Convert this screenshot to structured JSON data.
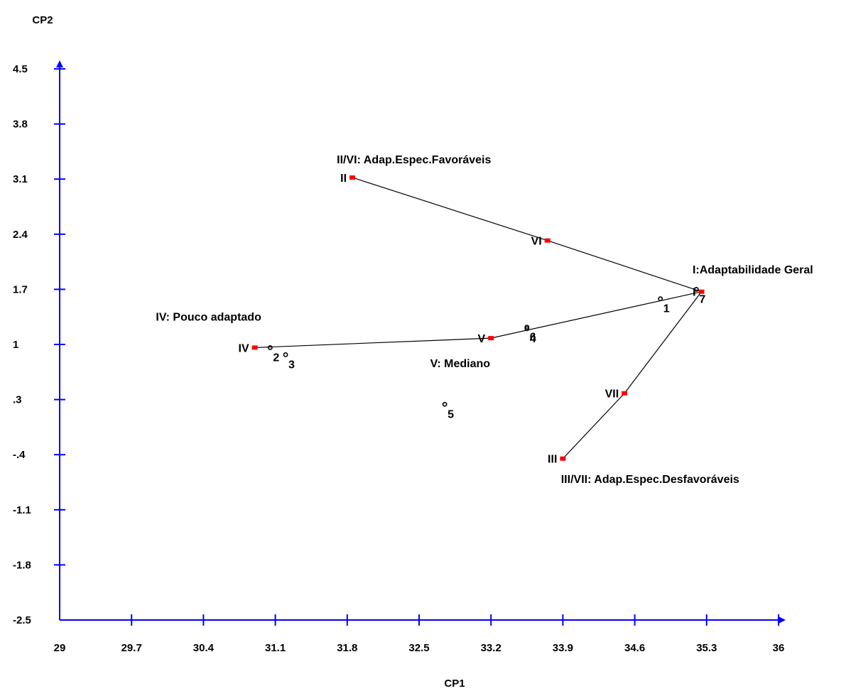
{
  "chart_data": {
    "type": "scatter",
    "title": "",
    "xlabel": "CP1",
    "ylabel": "CP2",
    "xlim": [
      29,
      36
    ],
    "ylim": [
      -2.5,
      4.5
    ],
    "x_ticks": [
      "29",
      "29.7",
      "30.4",
      "31.1",
      "31.8",
      "32.5",
      "33.2",
      "33.9",
      "34.6",
      "35.3",
      "36"
    ],
    "y_ticks": [
      "4.5",
      "3.8",
      "3.1",
      "2.4",
      "1.7",
      "1",
      ".3",
      "-.4",
      "-1.1",
      "-1.8",
      "-2.5"
    ],
    "grid": false,
    "colors": {
      "axis": "#0000ff",
      "reference": "#ff0000",
      "genotype": "#000000",
      "line": "#000000"
    },
    "reference_points": [
      {
        "label": "I",
        "x": 35.25,
        "y": 1.67
      },
      {
        "label": "II",
        "x": 31.85,
        "y": 3.12
      },
      {
        "label": "III",
        "x": 33.9,
        "y": -0.45
      },
      {
        "label": "IV",
        "x": 30.9,
        "y": 0.96
      },
      {
        "label": "V",
        "x": 33.2,
        "y": 1.08
      },
      {
        "label": "VI",
        "x": 33.75,
        "y": 2.32
      },
      {
        "label": "VII",
        "x": 34.5,
        "y": 0.38
      }
    ],
    "genotypes": [
      {
        "label": "1",
        "x": 34.85,
        "y": 1.58
      },
      {
        "label": "2",
        "x": 31.05,
        "y": 0.96
      },
      {
        "label": "3",
        "x": 31.2,
        "y": 0.87
      },
      {
        "label": "4",
        "x": 33.55,
        "y": 1.2
      },
      {
        "label": "5",
        "x": 32.75,
        "y": 0.24
      },
      {
        "label": "6",
        "x": 33.55,
        "y": 1.22
      },
      {
        "label": "7",
        "x": 35.2,
        "y": 1.7
      }
    ],
    "segments": [
      [
        "I",
        "VI",
        "II"
      ],
      [
        "I",
        "VII",
        "III"
      ],
      [
        "I",
        "V",
        "IV"
      ]
    ],
    "annotations": [
      {
        "text": "I:Adaptabilidade Geral",
        "x": 35.75,
        "y": 1.9
      },
      {
        "text": "II/VI: Adap.Espec.Favoráveis",
        "x": 32.45,
        "y": 3.3
      },
      {
        "text": "III/VII: Adap.Espec.Desfavoráveis",
        "x": 34.75,
        "y": -0.76
      },
      {
        "text": "IV: Pouco adaptado",
        "x": 30.45,
        "y": 1.3
      },
      {
        "text": "V: Mediano",
        "x": 32.9,
        "y": 0.71
      }
    ]
  }
}
